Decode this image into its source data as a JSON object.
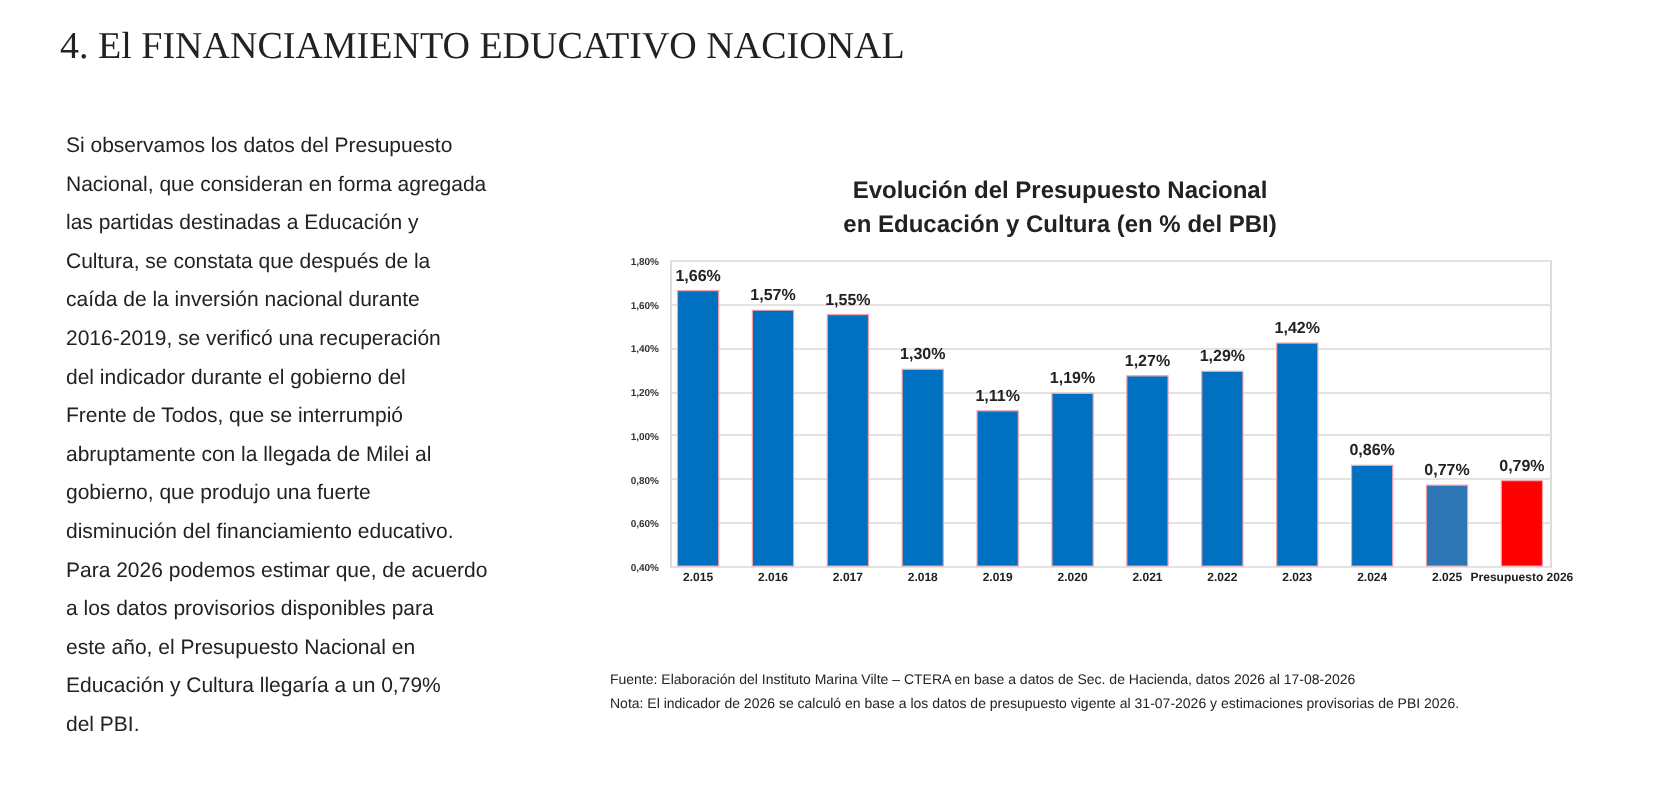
{
  "chart_data": {
    "type": "bar",
    "title": "Evolución del Presupuesto Nacional en Educación y Cultura (en % del PBI)",
    "categories": [
      "2.015",
      "2.016",
      "2.017",
      "2.018",
      "2.019",
      "2.020",
      "2.021",
      "2.022",
      "2.023",
      "2.024",
      "2.025",
      "Presupuesto 2026"
    ],
    "values": [
      1.66,
      1.57,
      1.55,
      1.3,
      1.11,
      1.19,
      1.27,
      1.29,
      1.42,
      0.86,
      0.77,
      0.79
    ],
    "colors": [
      "#0070c0",
      "#0070c0",
      "#0070c0",
      "#0070c0",
      "#0070c0",
      "#0070c0",
      "#0070c0",
      "#0070c0",
      "#0070c0",
      "#0070c0",
      "#2e75b6",
      "#ff0000"
    ],
    "value_labels": [
      "1,66%",
      "1,57%",
      "1,55%",
      "1,30%",
      "1,11%",
      "1,19%",
      "1,27%",
      "1,29%",
      "1,42%",
      "0,86%",
      "0,77%",
      "0,79%"
    ],
    "ylim": [
      0.4,
      1.8
    ],
    "yticks": [
      {
        "value": 0.4,
        "label": "0,40%"
      },
      {
        "value": 0.6,
        "label": "0,60%"
      },
      {
        "value": 0.8,
        "label": "0,80%"
      },
      {
        "value": 1.0,
        "label": "1,00%"
      },
      {
        "value": 1.2,
        "label": "1,20%"
      },
      {
        "value": 1.4,
        "label": "1,40%"
      },
      {
        "value": 1.6,
        "label": "1,60%"
      },
      {
        "value": 1.8,
        "label": "1,80%"
      }
    ],
    "grid": "y",
    "annotations": [
      "4. El FINANCIAMIENTO EDUCATIVO NACIONAL",
      "Si observamos los datos del Presupuesto Nacional, que consideran en forma agregada las partidas destinadas a Educación y Cultura, se constata que después de la caída de la inversión nacional durante 2016-2019, se verificó una recuperación del indicador durante el gobierno del Frente de Todos, que se interrumpió abruptamente con la llegada de Milei al gobierno, que produjo una fuerte disminución del financiamiento educativo. Para 2026 podemos estimar que, de acuerdo a los datos provisorios disponibles para este año, el Presupuesto Nacional en Educación y Cultura llegaría a un 0,79% del PBI.",
      "Fuente: Elaboración del Instituto Marina Vilte – CTERA en base a datos de Sec. de Hacienda, datos 2026 al 17-08-2026",
      "Nota:  El indicador de 2026 se calculó en base a los datos de presupuesto vigente al 31-07-2026 y estimaciones provisorias de PBI 2026."
    ]
  }
}
